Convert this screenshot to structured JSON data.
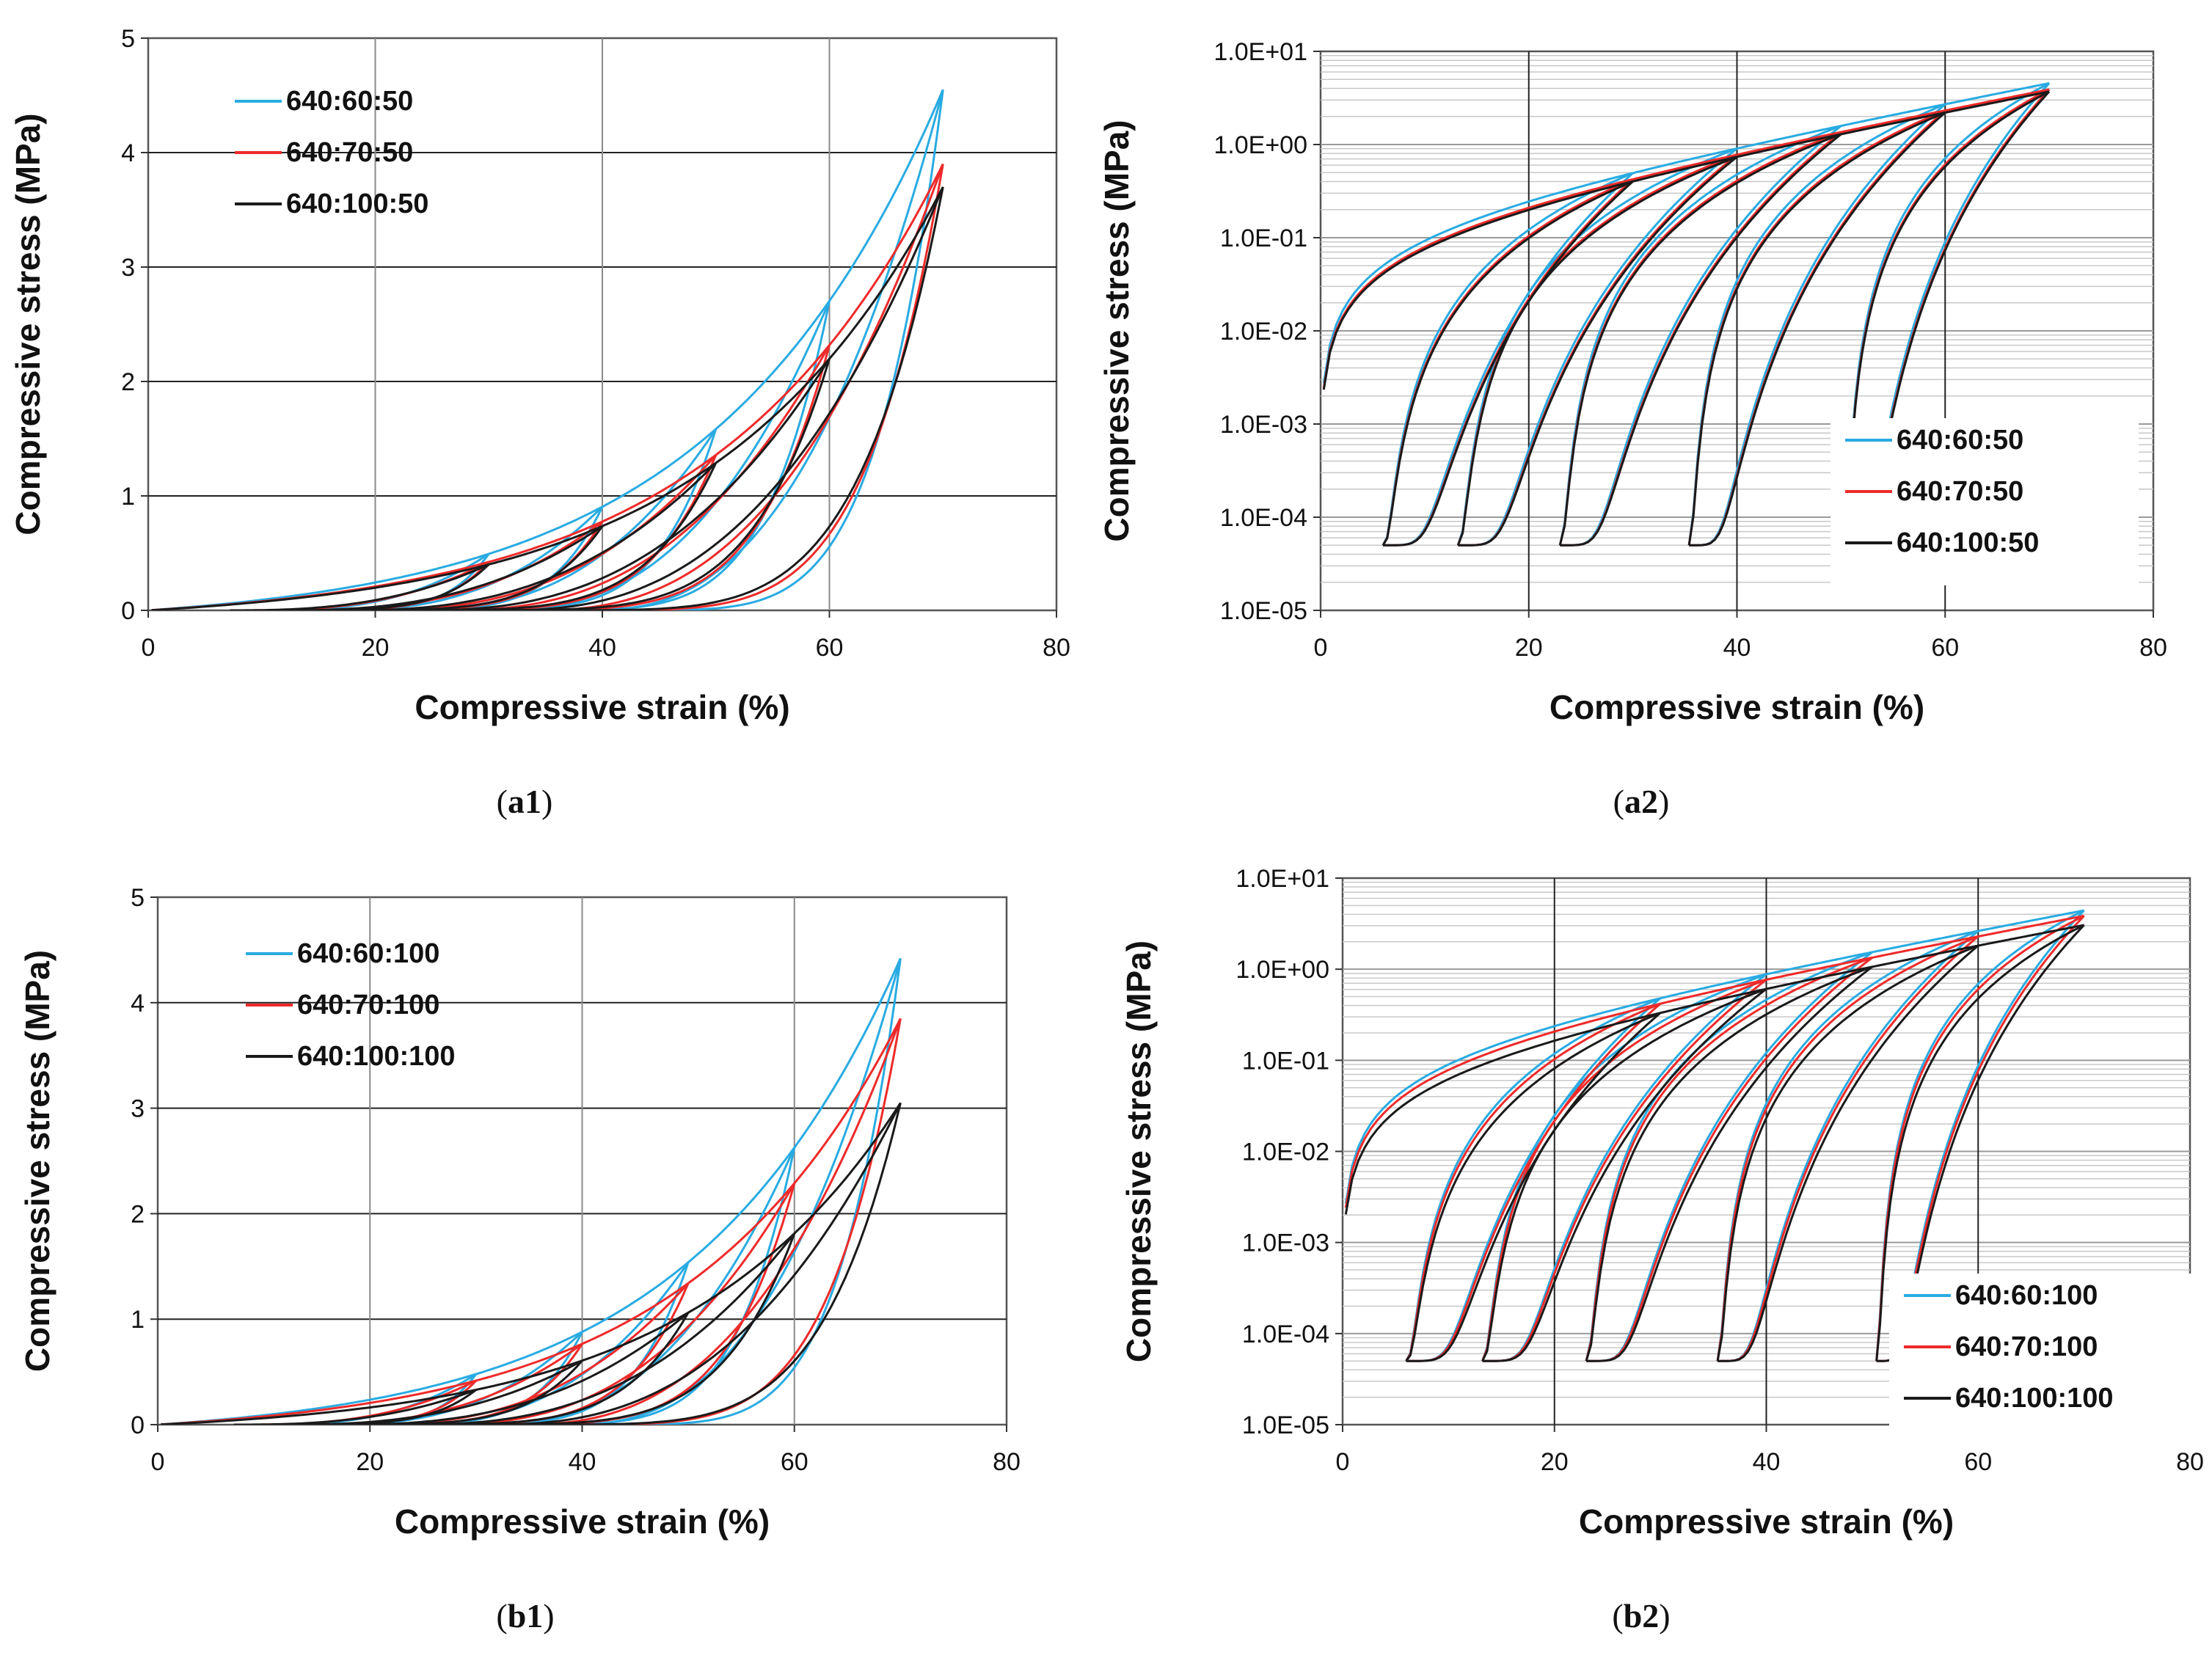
{
  "colors": {
    "s1": "#29abe2",
    "s2": "#ee2a2a",
    "s3": "#1a1a1a"
  },
  "chart_data": [
    {
      "id": "a1",
      "caption": "a1",
      "type": "line",
      "yscale": "linear",
      "xlabel": "Compressive strain (%)",
      "ylabel": "Compressive stress  (MPa)",
      "xlim": [
        0,
        80
      ],
      "ylim": [
        0,
        5
      ],
      "xticks": [
        "0",
        "20",
        "40",
        "60",
        "80"
      ],
      "yticks": [
        "0",
        "1",
        "2",
        "3",
        "4",
        "5"
      ],
      "legend_position": "top-left",
      "series": [
        {
          "name": "640:60:50",
          "peak": 4.55,
          "fill_start": 0.12
        },
        {
          "name": "640:70:50",
          "peak": 3.9,
          "fill_start": 0.0
        },
        {
          "name": "640:100:50",
          "peak": 3.7,
          "fill_start": 0.0
        }
      ],
      "cycle_strains": [
        30,
        40,
        50,
        60,
        70
      ]
    },
    {
      "id": "a2",
      "caption": "a2",
      "type": "line",
      "yscale": "log",
      "xlabel": "Compressive strain (%)",
      "ylabel": "Compressive stress  (MPa)",
      "xlim": [
        0,
        80
      ],
      "ylim": [
        1e-05,
        10
      ],
      "xticks": [
        "0",
        "20",
        "40",
        "60",
        "80"
      ],
      "yticks": [
        "1.0E-05",
        "1.0E-04",
        "1.0E-03",
        "1.0E-02",
        "1.0E-01",
        "1.0E+00",
        "1.0E+01"
      ],
      "legend_position": "bottom-right",
      "series": [
        {
          "name": "640:60:50",
          "peak": 4.55
        },
        {
          "name": "640:70:50",
          "peak": 3.9
        },
        {
          "name": "640:100:50",
          "peak": 3.7
        }
      ],
      "cycle_strains": [
        30,
        40,
        50,
        60,
        70
      ]
    },
    {
      "id": "b1",
      "caption": "b1",
      "type": "line",
      "yscale": "linear",
      "xlabel": "Compressive strain (%)",
      "ylabel": "Compressive stress  (MPa)",
      "xlim": [
        0,
        80
      ],
      "ylim": [
        0,
        5
      ],
      "xticks": [
        "0",
        "20",
        "40",
        "60",
        "80"
      ],
      "yticks": [
        "0",
        "1",
        "2",
        "3",
        "4",
        "5"
      ],
      "legend_position": "top-left",
      "series": [
        {
          "name": "640:60:100",
          "peak": 4.42
        },
        {
          "name": "640:70:100",
          "peak": 3.85
        },
        {
          "name": "640:100:100",
          "peak": 3.05
        }
      ],
      "cycle_strains": [
        30,
        40,
        50,
        60,
        70
      ]
    },
    {
      "id": "b2",
      "caption": "b2",
      "type": "line",
      "yscale": "log",
      "xlabel": "Compressive strain (%)",
      "ylabel": "Compressive stress  (MPa)",
      "xlim": [
        0,
        80
      ],
      "ylim": [
        1e-05,
        10
      ],
      "xticks": [
        "0",
        "20",
        "40",
        "60",
        "80"
      ],
      "yticks": [
        "1.0E-05",
        "1.0E-04",
        "1.0E-03",
        "1.0E-02",
        "1.0E-01",
        "1.0E+00",
        "1.0E+01"
      ],
      "legend_position": "bottom-right",
      "series": [
        {
          "name": "640:60:100",
          "peak": 4.42
        },
        {
          "name": "640:70:100",
          "peak": 3.85
        },
        {
          "name": "640:100:100",
          "peak": 3.05
        }
      ],
      "cycle_strains": [
        30,
        40,
        50,
        60,
        70
      ]
    }
  ]
}
